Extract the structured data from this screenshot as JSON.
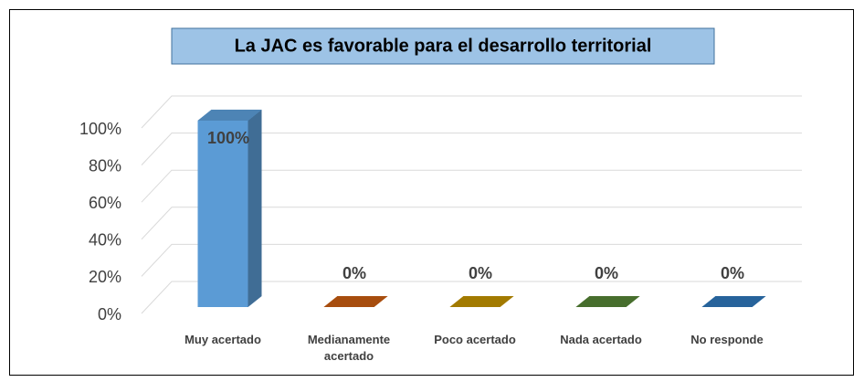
{
  "chart_data": {
    "type": "bar3d",
    "title": "La JAC es favorable para el desarrollo territorial",
    "categories": [
      "Muy acertado",
      "Medianamente acertado",
      "Poco acertado",
      "Nada acertado",
      "No responde"
    ],
    "values": [
      100,
      0,
      0,
      0,
      0
    ],
    "value_labels": [
      "100%",
      "0%",
      "0%",
      "0%",
      "0%"
    ],
    "colors": [
      "#5b9bd5",
      "#c55a11",
      "#bf9000",
      "#538135",
      "#2e75b6"
    ],
    "ylim": [
      0,
      100
    ],
    "yticks": [
      {
        "value": 0,
        "label": "0%"
      },
      {
        "value": 20,
        "label": "20%"
      },
      {
        "value": 40,
        "label": "40%"
      },
      {
        "value": 60,
        "label": "60%"
      },
      {
        "value": 80,
        "label": "80%"
      },
      {
        "value": 100,
        "label": "100%"
      }
    ],
    "grid": true
  }
}
